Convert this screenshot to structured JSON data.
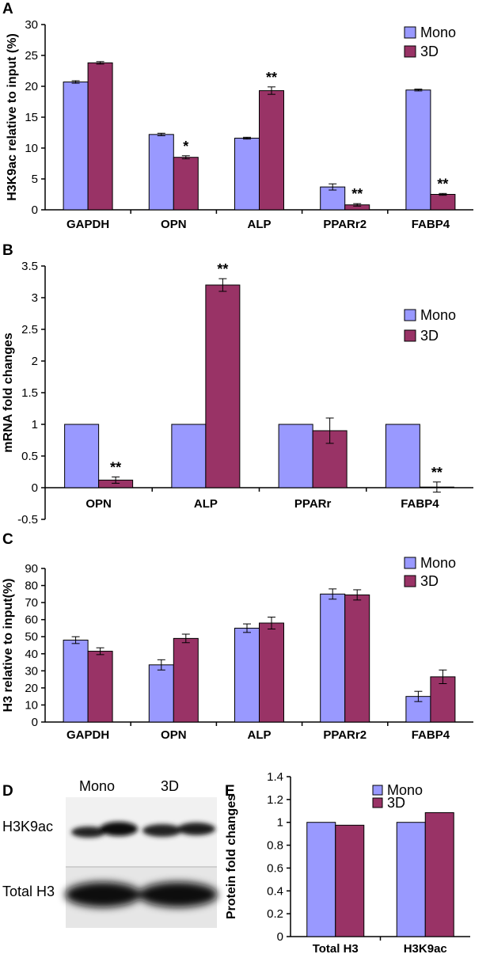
{
  "colors": {
    "mono": "#9999FF",
    "threeD": "#993366"
  },
  "blot": {
    "letter": "D",
    "lanes": [
      "Mono",
      "3D"
    ],
    "rows": [
      "H3K9ac",
      "Total H3"
    ]
  },
  "chart_data": [
    {
      "panel": "A",
      "type": "bar",
      "ylabel": "H3K9ac relative to input (%)",
      "ylim": [
        0,
        30
      ],
      "yticks": [
        0,
        5,
        10,
        15,
        20,
        25,
        30
      ],
      "categories": [
        "GAPDH",
        "OPN",
        "ALP",
        "PPARr2",
        "FABP4"
      ],
      "series": [
        {
          "name": "Mono",
          "values": [
            20.7,
            12.2,
            11.6,
            3.7,
            19.4
          ],
          "errors": [
            0.2,
            0.2,
            0.15,
            0.5,
            0.15
          ]
        },
        {
          "name": "3D",
          "values": [
            23.8,
            8.5,
            19.3,
            0.8,
            2.5
          ],
          "errors": [
            0.2,
            0.25,
            0.6,
            0.2,
            0.15
          ]
        }
      ],
      "significance": [
        "",
        "*",
        "**",
        "**",
        "**"
      ],
      "legend": "right",
      "grid": false
    },
    {
      "panel": "B",
      "type": "bar",
      "ylabel": "mRNA fold changes",
      "ylim": [
        -0.5,
        3.5
      ],
      "yticks": [
        -0.5,
        0,
        0.5,
        1,
        1.5,
        2,
        2.5,
        3,
        3.5
      ],
      "categories": [
        "OPN",
        "ALP",
        "PPARr",
        "FABP4"
      ],
      "series": [
        {
          "name": "Mono",
          "values": [
            1,
            1,
            1,
            1
          ],
          "errors": [
            0,
            0,
            0,
            0
          ]
        },
        {
          "name": "3D",
          "values": [
            0.12,
            3.2,
            0.9,
            0.01
          ],
          "errors": [
            0.05,
            0.1,
            0.2,
            0.08
          ]
        }
      ],
      "significance": [
        "**",
        "**",
        "",
        "**"
      ],
      "legend": "right",
      "grid": false
    },
    {
      "panel": "C",
      "type": "bar",
      "ylabel": "H3 relative to input(%)",
      "ylim": [
        0,
        90
      ],
      "yticks": [
        0,
        10,
        20,
        30,
        40,
        50,
        60,
        70,
        80,
        90
      ],
      "categories": [
        "GAPDH",
        "OPN",
        "ALP",
        "PPARr2",
        "FABP4"
      ],
      "series": [
        {
          "name": "Mono",
          "values": [
            48,
            33.5,
            55,
            75,
            15
          ],
          "errors": [
            2,
            3,
            2.5,
            3,
            3
          ]
        },
        {
          "name": "3D",
          "values": [
            41.5,
            49,
            58,
            74.5,
            26.5
          ],
          "errors": [
            2,
            2.5,
            3.5,
            3,
            4
          ]
        }
      ],
      "significance": [
        "",
        "",
        "",
        "",
        ""
      ],
      "legend": "top-right",
      "grid": false
    },
    {
      "panel": "E",
      "type": "bar",
      "ylabel": "Protein fold changes",
      "ylim": [
        0,
        1.4
      ],
      "yticks": [
        0,
        0.2,
        0.4,
        0.6,
        0.8,
        1,
        1.2,
        1.4
      ],
      "categories": [
        "Total H3",
        "H3K9ac"
      ],
      "series": [
        {
          "name": "Mono",
          "values": [
            1,
            1
          ],
          "errors": [
            0,
            0
          ]
        },
        {
          "name": "3D",
          "values": [
            0.975,
            1.085
          ],
          "errors": [
            0,
            0
          ]
        }
      ],
      "significance": [
        "",
        ""
      ],
      "legend": "top-right",
      "grid": false
    }
  ]
}
